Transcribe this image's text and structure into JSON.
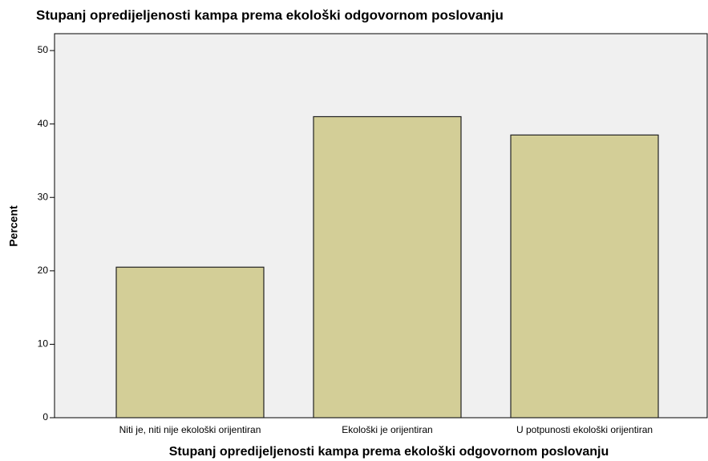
{
  "chart_data": {
    "type": "bar",
    "title": "Stupanj opredijeljenosti kampa prema ekološki odgovornom poslovanju",
    "x_label": "Stupanj opredijeljenosti kampa prema ekološki odgovornom poslovanju",
    "y_label": "Percent",
    "categories": [
      "Niti je, niti nije ekološki orijentiran",
      "Ekološki je orijentiran",
      "U potpunosti ekološki orijentiran"
    ],
    "values": [
      20.5,
      41.0,
      38.5
    ],
    "color": "#d3ce97",
    "ylim": [
      0,
      52.3
    ],
    "yticks": [
      0,
      10,
      20,
      30,
      40,
      50
    ],
    "grid": false
  }
}
